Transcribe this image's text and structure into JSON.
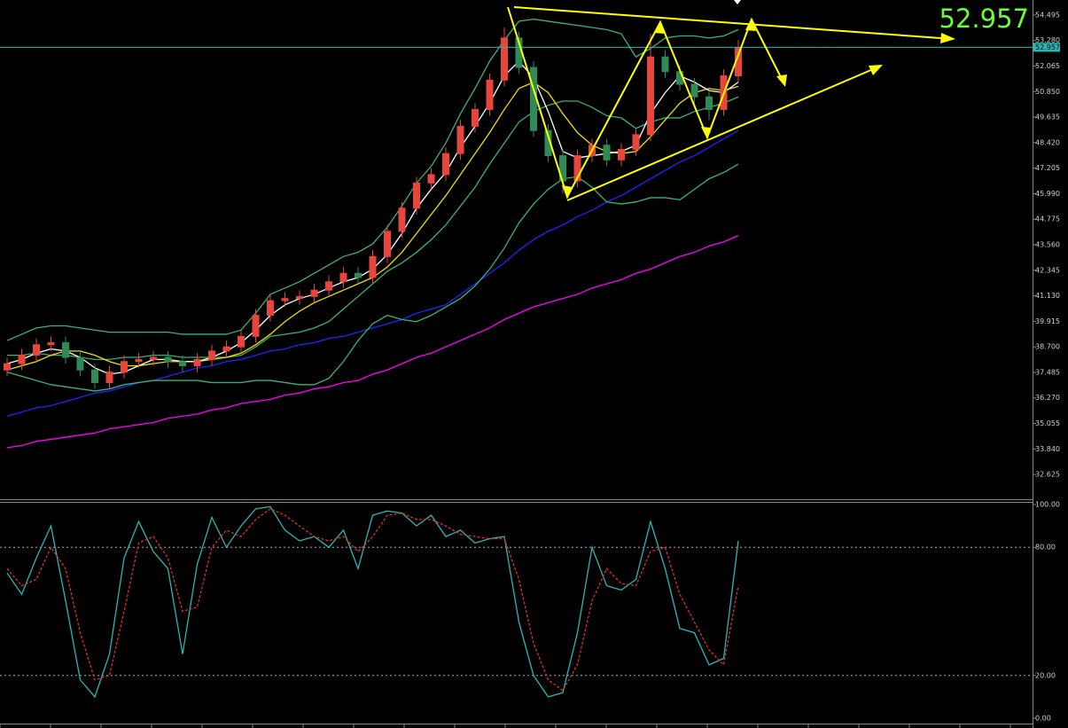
{
  "chart_data": [
    {
      "type": "candlestick",
      "last_price": 52.957,
      "ylim": [
        31.49,
        55.21
      ],
      "yticks": [
        54.495,
        {
          "value": 53.28,
          "label": "53.280"
        },
        52.065,
        {
          "value": 50.85,
          "label": "50.850"
        },
        49.635,
        {
          "value": 48.42,
          "label": "48.420"
        },
        47.205,
        {
          "value": 45.99,
          "label": "45.990"
        },
        44.775,
        {
          "value": 43.56,
          "label": "43.560"
        },
        42.345,
        {
          "value": 41.13,
          "label": "41.130"
        },
        39.915,
        {
          "value": 38.7,
          "label": "38.700"
        },
        37.485,
        {
          "value": 36.27,
          "label": "36.270"
        },
        35.055,
        {
          "value": 33.84,
          "label": "33.840"
        },
        32.625
      ],
      "up_color": "#e8453c",
      "down_color": "#2e8b57",
      "candles": {
        "open": [
          37.6,
          37.9,
          38.3,
          38.8,
          38.9,
          38.2,
          37.6,
          37.0,
          37.5,
          38.0,
          38.1,
          38.2,
          38.0,
          37.8,
          38.1,
          38.5,
          38.7,
          39.2,
          40.2,
          40.9,
          41.0,
          41.1,
          41.4,
          41.8,
          42.2,
          42.0,
          43.0,
          44.2,
          45.3,
          46.5,
          46.9,
          47.9,
          49.2,
          50.0,
          51.4,
          53.4,
          52.0,
          49.0,
          47.8,
          46.6,
          47.8,
          48.3,
          47.6,
          48.1,
          48.8,
          52.5,
          51.8,
          51.2,
          50.6,
          50.0,
          51.6
        ],
        "high": [
          38.2,
          38.6,
          39.1,
          39.2,
          39.2,
          38.5,
          37.9,
          37.8,
          38.3,
          38.4,
          38.5,
          38.5,
          38.3,
          38.4,
          38.8,
          39.0,
          39.5,
          40.5,
          41.2,
          41.3,
          41.4,
          41.7,
          42.1,
          42.5,
          42.5,
          43.3,
          44.5,
          45.6,
          46.8,
          47.2,
          48.2,
          49.5,
          50.3,
          51.7,
          53.9,
          53.7,
          52.3,
          49.3,
          48.1,
          48.1,
          48.6,
          48.6,
          48.4,
          49.1,
          53.6,
          52.8,
          52.1,
          51.5,
          50.9,
          51.9,
          53.3
        ],
        "low": [
          37.3,
          37.6,
          38.0,
          38.5,
          37.9,
          37.3,
          36.7,
          36.7,
          37.2,
          37.7,
          37.8,
          37.7,
          37.5,
          37.5,
          37.8,
          38.2,
          38.4,
          38.9,
          39.9,
          40.6,
          40.7,
          40.8,
          41.1,
          41.5,
          41.7,
          41.7,
          42.7,
          43.9,
          45.0,
          46.2,
          46.6,
          47.6,
          48.9,
          49.7,
          51.1,
          51.7,
          48.7,
          47.5,
          46.0,
          46.3,
          47.5,
          47.3,
          47.3,
          47.8,
          48.5,
          51.5,
          50.9,
          50.3,
          49.5,
          49.7,
          51.3
        ],
        "close": [
          37.9,
          38.3,
          38.8,
          38.9,
          38.2,
          37.6,
          37.0,
          37.5,
          38.0,
          38.1,
          38.2,
          38.0,
          37.8,
          38.1,
          38.5,
          38.7,
          39.2,
          40.2,
          40.9,
          41.0,
          41.1,
          41.4,
          41.8,
          42.2,
          42.0,
          43.0,
          44.2,
          45.3,
          46.5,
          46.9,
          47.9,
          49.2,
          50.0,
          51.4,
          53.4,
          52.0,
          49.0,
          47.8,
          46.6,
          47.8,
          48.3,
          47.6,
          48.1,
          48.8,
          52.5,
          51.8,
          51.2,
          50.6,
          50.0,
          51.6,
          52.957
        ]
      },
      "series": [
        {
          "color": "#ff00ff",
          "values": [
            33.9,
            34.0,
            34.2,
            34.3,
            34.4,
            34.5,
            34.6,
            34.8,
            34.9,
            35.0,
            35.1,
            35.3,
            35.4,
            35.5,
            35.7,
            35.8,
            36.0,
            36.1,
            36.2,
            36.4,
            36.5,
            36.7,
            36.8,
            37.0,
            37.1,
            37.4,
            37.6,
            37.9,
            38.2,
            38.4,
            38.7,
            39.0,
            39.3,
            39.6,
            40.0,
            40.3,
            40.6,
            40.8,
            41.0,
            41.2,
            41.5,
            41.7,
            41.9,
            42.2,
            42.4,
            42.7,
            43.0,
            43.2,
            43.5,
            43.7,
            44.0
          ]
        },
        {
          "color": "#2222ff",
          "values": [
            35.4,
            35.6,
            35.8,
            35.9,
            36.1,
            36.3,
            36.5,
            36.6,
            36.8,
            37.0,
            37.1,
            37.3,
            37.5,
            37.7,
            37.8,
            38.0,
            38.1,
            38.3,
            38.5,
            38.6,
            38.8,
            38.9,
            39.1,
            39.2,
            39.4,
            39.6,
            39.8,
            40.0,
            40.3,
            40.5,
            40.7,
            41.2,
            41.7,
            42.2,
            42.7,
            43.3,
            43.8,
            44.2,
            44.5,
            44.9,
            45.2,
            45.6,
            45.9,
            46.3,
            46.7,
            47.1,
            47.5,
            47.8,
            48.2,
            48.6,
            49.0
          ]
        },
        {
          "color": "#3cb371",
          "values": [
            39.0,
            39.3,
            39.6,
            39.7,
            39.7,
            39.6,
            39.5,
            39.4,
            39.4,
            39.4,
            39.4,
            39.4,
            39.3,
            39.3,
            39.3,
            39.3,
            39.5,
            40.3,
            41.2,
            41.5,
            41.8,
            42.2,
            42.6,
            43.0,
            43.2,
            43.6,
            44.4,
            45.4,
            46.5,
            47.3,
            48.4,
            49.8,
            51.0,
            52.3,
            53.3,
            54.2,
            54.3,
            54.2,
            54.1,
            54.0,
            53.9,
            53.8,
            53.6,
            52.5,
            52.9,
            53.4,
            53.5,
            53.5,
            53.4,
            53.5,
            53.8
          ]
        },
        {
          "color": "#3cb371",
          "values": [
            38.3,
            38.3,
            38.4,
            38.3,
            38.3,
            38.2,
            38.1,
            38.1,
            38.2,
            38.2,
            38.3,
            38.3,
            38.2,
            38.2,
            38.2,
            38.2,
            38.3,
            38.7,
            39.2,
            39.3,
            39.4,
            39.6,
            39.9,
            40.5,
            41.1,
            41.7,
            42.3,
            42.7,
            43.2,
            43.8,
            44.5,
            45.4,
            46.3,
            47.4,
            48.4,
            49.4,
            49.9,
            50.2,
            50.4,
            50.4,
            50.1,
            49.7,
            49.6,
            49.1,
            49.4,
            49.6,
            49.6,
            49.9,
            50.1,
            50.3,
            50.6
          ]
        },
        {
          "color": "#3cb371",
          "values": [
            37.5,
            37.3,
            37.1,
            36.9,
            36.8,
            36.7,
            36.6,
            36.7,
            36.9,
            37.0,
            37.1,
            37.1,
            37.1,
            37.1,
            37.0,
            37.0,
            37.0,
            37.1,
            37.1,
            37.0,
            36.9,
            36.9,
            37.2,
            38.0,
            39.0,
            39.8,
            40.2,
            40.0,
            39.9,
            40.2,
            40.6,
            41.0,
            41.6,
            42.4,
            43.4,
            44.6,
            45.5,
            46.2,
            46.7,
            46.8,
            46.3,
            45.6,
            45.5,
            45.6,
            45.8,
            45.8,
            45.7,
            46.2,
            46.7,
            47.0,
            47.4
          ]
        },
        {
          "color": "#f0e000",
          "values": [
            37.6,
            37.8,
            38.0,
            38.3,
            38.5,
            38.5,
            38.3,
            38.0,
            37.8,
            37.8,
            37.9,
            38.0,
            38.0,
            38.0,
            38.1,
            38.2,
            38.4,
            38.8,
            39.3,
            39.9,
            40.4,
            40.8,
            41.1,
            41.4,
            41.7,
            42.0,
            42.5,
            43.2,
            44.1,
            45.0,
            45.9,
            46.9,
            47.9,
            48.9,
            50.0,
            51.0,
            51.3,
            50.8,
            49.8,
            48.9,
            48.3,
            48.0,
            47.9,
            48.0,
            48.7,
            49.5,
            50.3,
            50.8,
            51.0,
            50.9,
            51.1
          ]
        },
        {
          "color": "#ffffff",
          "values": [
            37.9,
            38.1,
            38.4,
            38.6,
            38.5,
            38.2,
            37.7,
            37.4,
            37.5,
            37.8,
            38.1,
            38.1,
            38.0,
            38.0,
            38.2,
            38.5,
            38.9,
            39.5,
            40.2,
            40.7,
            41.0,
            41.2,
            41.5,
            41.8,
            42.0,
            42.4,
            43.1,
            44.1,
            45.3,
            46.2,
            47.0,
            48.2,
            49.2,
            50.3,
            51.6,
            52.3,
            51.5,
            49.9,
            48.0,
            47.7,
            47.8,
            47.9,
            48.0,
            48.3,
            49.8,
            50.8,
            51.6,
            51.3,
            50.9,
            50.8,
            51.3
          ]
        }
      ]
    },
    {
      "type": "line",
      "ylim": [
        0,
        100
      ],
      "yticks": [
        {
          "value": 100,
          "label": "100.00"
        },
        {
          "value": 80,
          "label": "80.00"
        },
        {
          "value": 20,
          "label": "20.00"
        },
        {
          "value": 0,
          "label": "0.00"
        }
      ],
      "series": [
        {
          "color": "#2ab7b7",
          "values": [
            68,
            58,
            75,
            90,
            55,
            18,
            10,
            30,
            75,
            92,
            78,
            70,
            30,
            72,
            94,
            80,
            90,
            98,
            99,
            88,
            83,
            85,
            80,
            88,
            70,
            95,
            97,
            96,
            90,
            95,
            85,
            88,
            82,
            84,
            85,
            45,
            20,
            10,
            12,
            40,
            80,
            62,
            60,
            65,
            92,
            70,
            42,
            40,
            25,
            28,
            83
          ]
        },
        {
          "color": "#e03030",
          "dashed": true,
          "values": [
            70,
            62,
            65,
            80,
            70,
            40,
            18,
            20,
            50,
            82,
            85,
            75,
            50,
            52,
            80,
            88,
            85,
            93,
            98,
            95,
            90,
            85,
            83,
            85,
            78,
            85,
            95,
            96,
            93,
            93,
            90,
            86,
            85,
            84,
            84,
            65,
            35,
            18,
            13,
            25,
            55,
            70,
            63,
            62,
            78,
            80,
            58,
            45,
            32,
            25,
            62
          ]
        }
      ]
    }
  ]
}
